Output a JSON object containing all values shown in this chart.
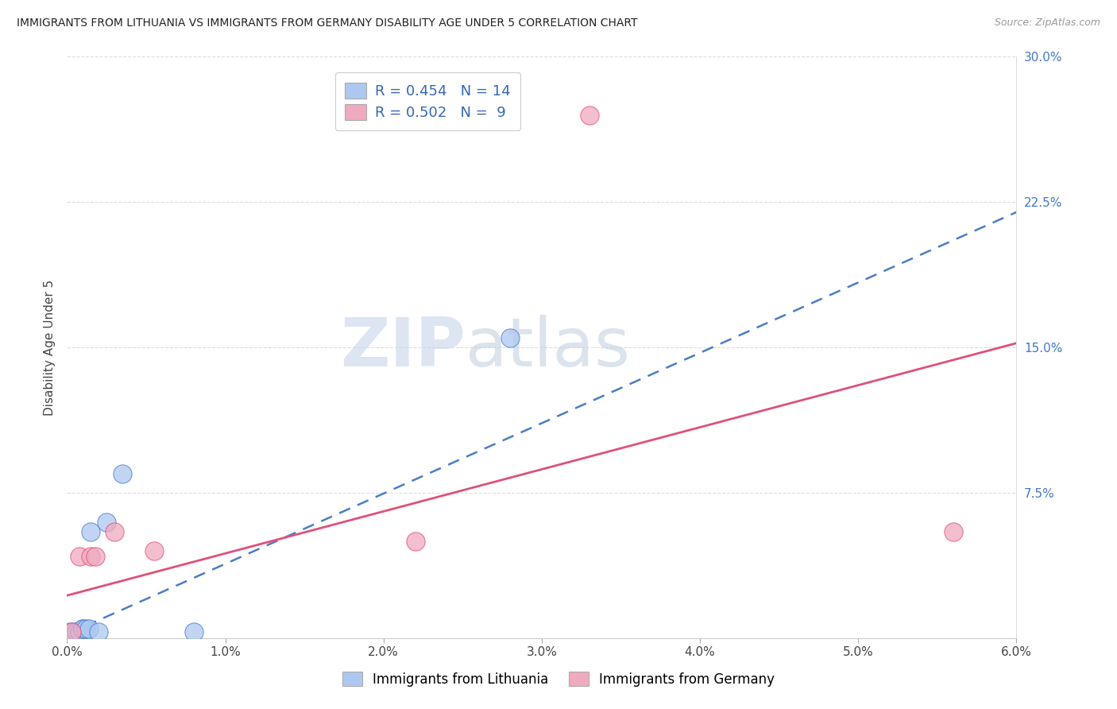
{
  "title": "IMMIGRANTS FROM LITHUANIA VS IMMIGRANTS FROM GERMANY DISABILITY AGE UNDER 5 CORRELATION CHART",
  "source": "Source: ZipAtlas.com",
  "ylabel": "Disability Age Under 5",
  "xlim": [
    0.0,
    0.06
  ],
  "ylim": [
    0.0,
    0.3
  ],
  "xticks": [
    0.0,
    0.01,
    0.02,
    0.03,
    0.04,
    0.05,
    0.06
  ],
  "xticklabels": [
    "0.0%",
    "1.0%",
    "2.0%",
    "3.0%",
    "4.0%",
    "5.0%",
    "6.0%"
  ],
  "yticks": [
    0.0,
    0.075,
    0.15,
    0.225,
    0.3
  ],
  "yticklabels": [
    "",
    "7.5%",
    "15.0%",
    "22.5%",
    "30.0%"
  ],
  "lithuania_x": [
    0.0002,
    0.0004,
    0.0006,
    0.0008,
    0.001,
    0.001,
    0.0012,
    0.0014,
    0.0015,
    0.002,
    0.0025,
    0.0035,
    0.008,
    0.028
  ],
  "lithuania_y": [
    0.003,
    0.003,
    0.003,
    0.003,
    0.005,
    0.005,
    0.005,
    0.005,
    0.055,
    0.003,
    0.06,
    0.085,
    0.003,
    0.155
  ],
  "germany_x": [
    0.0003,
    0.0008,
    0.0015,
    0.0018,
    0.003,
    0.0055,
    0.022,
    0.033,
    0.056
  ],
  "germany_y": [
    0.003,
    0.042,
    0.042,
    0.042,
    0.055,
    0.045,
    0.05,
    0.27,
    0.055
  ],
  "lithuania_color": "#adc8f0",
  "germany_color": "#f0aabf",
  "lithuania_line_color": "#4a7cc9",
  "germany_line_color": "#e0507a",
  "lith_line_intercept": 0.002,
  "lith_line_slope": 3.63,
  "germ_line_intercept": 0.022,
  "germ_line_slope": 2.17,
  "legend_text_1": "R = 0.454   N = 14",
  "legend_text_2": "R = 0.502   N =  9",
  "watermark_zip": "ZIP",
  "watermark_atlas": "atlas",
  "background_color": "#ffffff",
  "grid_color": "#dddddd"
}
